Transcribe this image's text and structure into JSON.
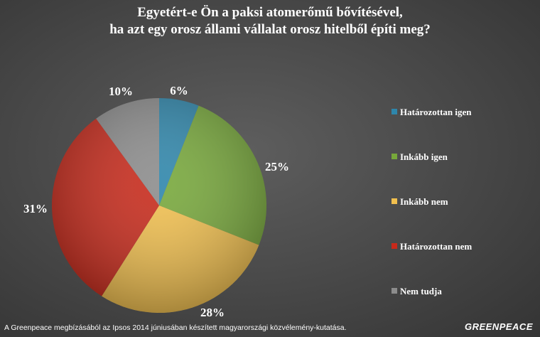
{
  "chart_data": {
    "type": "pie",
    "title": [
      "Egyetért-e Ön a paksi atomerőmű bővítésével,",
      "ha azt egy orosz állami vállalat orosz hitelből építi meg?"
    ],
    "categories": [
      "Határozottan igen",
      "Inkább igen",
      "Inkább nem",
      "Határozottan nem",
      "Nem tudja"
    ],
    "values": [
      6,
      25,
      28,
      31,
      10
    ],
    "labels": [
      "6%",
      "25%",
      "28%",
      "31%",
      "10%"
    ],
    "colors": [
      "#2e86ab",
      "#77a83a",
      "#f2c04e",
      "#c8291a",
      "#8c8c8c"
    ],
    "legend_position": "right"
  },
  "footer": "A Greenpeace megbízásából az Ipsos 2014 júniusában készített magyarországi közvélemény-kutatása.",
  "logo": "GREENPEACE"
}
